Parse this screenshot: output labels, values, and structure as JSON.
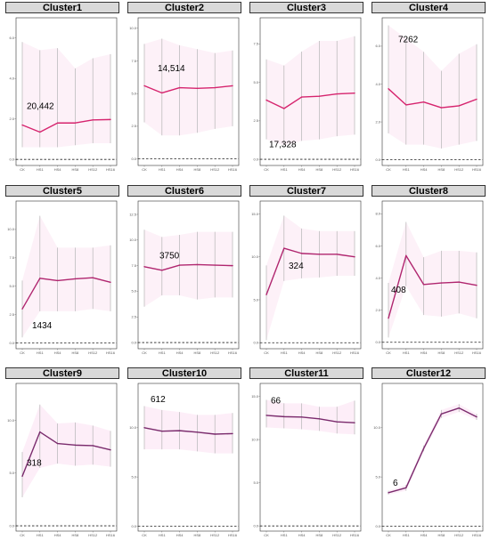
{
  "chart_data": [
    {
      "type": "line",
      "title": "Cluster1",
      "categories": [
        "CK",
        "HS1",
        "HS4",
        "HS8",
        "HS12",
        "HS16"
      ],
      "values": [
        1.7,
        1.35,
        1.8,
        1.8,
        1.95,
        1.97
      ],
      "error_low": [
        0.6,
        0.6,
        0.6,
        0.7,
        0.8,
        0.8
      ],
      "error_high": [
        5.8,
        5.4,
        5.5,
        4.5,
        5.0,
        5.2
      ],
      "count_label": "20,442",
      "count_value": 2.5,
      "yticks": [
        "0.0",
        "2.0",
        "4.0",
        "6.0"
      ],
      "ytick_values": [
        0,
        2,
        4,
        6
      ],
      "ylim": [
        -0.3,
        7
      ],
      "line_color": "#d6246e",
      "band_color": "#fce8f3"
    },
    {
      "type": "line",
      "title": "Cluster2",
      "categories": [
        "CK",
        "HS1",
        "HS4",
        "HS8",
        "HS12",
        "HS16"
      ],
      "values": [
        5.6,
        5.05,
        5.45,
        5.4,
        5.45,
        5.6
      ],
      "error_low": [
        2.8,
        1.8,
        1.8,
        2.0,
        2.3,
        2.5
      ],
      "error_high": [
        8.8,
        9.2,
        8.7,
        8.4,
        8.1,
        8.3
      ],
      "count_label": "14,514",
      "count_value": 6.7,
      "yticks": [
        "0.0",
        "2.5",
        "5.0",
        "7.5",
        "10.0"
      ],
      "ytick_values": [
        0,
        2.5,
        5,
        7.5,
        10
      ],
      "ylim": [
        -0.5,
        10.8
      ],
      "line_color": "#d6246e",
      "band_color": "#fce8f3"
    },
    {
      "type": "line",
      "title": "Cluster3",
      "categories": [
        "CK",
        "HS1",
        "HS4",
        "HS8",
        "HS12",
        "HS16"
      ],
      "values": [
        3.85,
        3.3,
        4.05,
        4.1,
        4.25,
        4.3
      ],
      "error_low": [
        1.3,
        0.9,
        1.2,
        1.3,
        1.5,
        1.6
      ],
      "error_high": [
        6.5,
        6.1,
        7.0,
        7.7,
        7.7,
        8.0
      ],
      "count_label": "17,328",
      "count_value": 0.8,
      "yticks": [
        "0.0",
        "2.5",
        "5.0",
        "7.5"
      ],
      "ytick_values": [
        0,
        2.5,
        5,
        7.5
      ],
      "ylim": [
        -0.4,
        9.2
      ],
      "line_color": "#d6246e",
      "band_color": "#fce8f3"
    },
    {
      "type": "line",
      "title": "Cluster4",
      "categories": [
        "CK",
        "HS1",
        "HS4",
        "HS8",
        "HS12",
        "HS16"
      ],
      "values": [
        3.75,
        2.9,
        3.05,
        2.75,
        2.85,
        3.2
      ],
      "error_low": [
        1.4,
        0.8,
        0.8,
        0.6,
        0.8,
        1.0
      ],
      "error_high": [
        7.1,
        6.4,
        5.7,
        4.7,
        5.6,
        6.1
      ],
      "count_label": "7262",
      "count_value": 6.2,
      "yticks": [
        "0.0",
        "2.0",
        "4.0",
        "6.0"
      ],
      "ytick_values": [
        0,
        2,
        4,
        6
      ],
      "ylim": [
        -0.3,
        7.5
      ],
      "line_color": "#d6246e",
      "band_color": "#fce8f3"
    },
    {
      "type": "line",
      "title": "Cluster5",
      "categories": [
        "CK",
        "HS1",
        "HS4",
        "HS8",
        "HS12",
        "HS16"
      ],
      "values": [
        3.0,
        5.7,
        5.5,
        5.65,
        5.75,
        5.35
      ],
      "error_low": [
        0.5,
        2.8,
        2.8,
        2.8,
        3.0,
        2.8
      ],
      "error_high": [
        5.5,
        11.2,
        8.4,
        8.4,
        8.4,
        8.6
      ],
      "count_label": "1434",
      "count_value": 1.3,
      "yticks": [
        "0.0",
        "2.5",
        "5.0",
        "7.5",
        "10.0"
      ],
      "ytick_values": [
        0,
        2.5,
        5,
        7.5,
        10
      ],
      "ylim": [
        -0.5,
        12.5
      ],
      "line_color": "#b0266f",
      "band_color": "#fce8f3"
    },
    {
      "type": "line",
      "title": "Cluster6",
      "categories": [
        "CK",
        "HS1",
        "HS4",
        "HS8",
        "HS12",
        "HS16"
      ],
      "values": [
        7.4,
        7.05,
        7.55,
        7.6,
        7.55,
        7.5
      ],
      "error_low": [
        3.5,
        4.6,
        4.6,
        4.2,
        4.4,
        4.4
      ],
      "error_high": [
        11.0,
        10.3,
        10.5,
        10.8,
        10.8,
        10.8
      ],
      "count_label": "3750",
      "count_value": 8.2,
      "yticks": [
        "0.0",
        "2.5",
        "5.0",
        "7.5",
        "10.0",
        "12.5"
      ],
      "ytick_values": [
        0,
        2.5,
        5,
        7.5,
        10,
        12.5
      ],
      "ylim": [
        -0.6,
        13.8
      ],
      "line_color": "#b0266f",
      "band_color": "#fce8f3"
    },
    {
      "type": "line",
      "title": "Cluster7",
      "categories": [
        "CK",
        "HS1",
        "HS4",
        "HS8",
        "HS12",
        "HS16"
      ],
      "values": [
        5.6,
        11.0,
        10.4,
        10.3,
        10.3,
        10.0
      ],
      "error_low": [
        0.3,
        7.2,
        7.5,
        7.6,
        7.8,
        7.8
      ],
      "error_high": [
        9.0,
        14.8,
        13.3,
        13.0,
        13.0,
        13.0
      ],
      "count_label": "324",
      "count_value": 8.6,
      "yticks": [
        "0.0",
        "5.0",
        "10.0",
        "15.0"
      ],
      "ytick_values": [
        0,
        5,
        10,
        15
      ],
      "ylim": [
        -0.7,
        16.5
      ],
      "line_color": "#b0266f",
      "band_color": "#fce8f3"
    },
    {
      "type": "line",
      "title": "Cluster8",
      "categories": [
        "CK",
        "HS1",
        "HS4",
        "HS8",
        "HS12",
        "HS16"
      ],
      "values": [
        1.5,
        5.4,
        3.6,
        3.7,
        3.75,
        3.55
      ],
      "error_low": [
        0.3,
        3.5,
        1.7,
        1.6,
        1.8,
        1.5
      ],
      "error_high": [
        3.7,
        7.5,
        5.3,
        5.7,
        5.7,
        5.6
      ],
      "count_label": "408",
      "count_value": 3.1,
      "yticks": [
        "0.0",
        "2.0",
        "4.0",
        "6.0",
        "8.0"
      ],
      "ytick_values": [
        0,
        2,
        4,
        6,
        8
      ],
      "ylim": [
        -0.4,
        8.8
      ],
      "line_color": "#b0266f",
      "band_color": "#fce8f3"
    },
    {
      "type": "line",
      "title": "Cluster9",
      "categories": [
        "CK",
        "HS1",
        "HS4",
        "HS8",
        "HS12",
        "HS16"
      ],
      "values": [
        4.7,
        8.9,
        7.8,
        7.65,
        7.6,
        7.2
      ],
      "error_low": [
        2.7,
        5.5,
        5.9,
        5.7,
        5.8,
        5.6
      ],
      "error_high": [
        7.0,
        11.5,
        9.7,
        9.8,
        9.5,
        9.0
      ],
      "count_label": "318",
      "count_value": 5.7,
      "yticks": [
        "0.0",
        "5.0",
        "10.0"
      ],
      "ytick_values": [
        0,
        5,
        10
      ],
      "ylim": [
        -0.5,
        13.5
      ],
      "line_color": "#7a2b6d",
      "band_color": "#fbe3f3"
    },
    {
      "type": "line",
      "title": "Cluster10",
      "categories": [
        "CK",
        "HS1",
        "HS4",
        "HS8",
        "HS12",
        "HS16"
      ],
      "values": [
        10.0,
        9.65,
        9.7,
        9.55,
        9.35,
        9.4
      ],
      "error_low": [
        7.8,
        7.8,
        7.8,
        7.6,
        7.4,
        7.4
      ],
      "error_high": [
        12.2,
        11.8,
        11.6,
        11.3,
        11.3,
        11.5
      ],
      "count_label": "612",
      "count_value": 12.6,
      "yticks": [
        "0.0",
        "5.0",
        "10.0"
      ],
      "ytick_values": [
        0,
        5,
        10
      ],
      "ylim": [
        -0.5,
        14.5
      ],
      "line_color": "#7a2b6d",
      "band_color": "#fbe3f3"
    },
    {
      "type": "line",
      "title": "Cluster11",
      "categories": [
        "CK",
        "HS1",
        "HS4",
        "HS8",
        "HS12",
        "HS16"
      ],
      "values": [
        12.8,
        12.65,
        12.6,
        12.4,
        12.05,
        11.95
      ],
      "error_low": [
        11.4,
        11.3,
        11.2,
        11.0,
        10.7,
        10.6
      ],
      "error_high": [
        14.6,
        14.2,
        14.2,
        13.8,
        13.8,
        14.5
      ],
      "count_label": "66",
      "count_value": 14.2,
      "yticks": [
        "0.0",
        "5.0",
        "10.0",
        "15.0"
      ],
      "ytick_values": [
        0,
        5,
        10,
        15
      ],
      "ylim": [
        -0.6,
        16.5
      ],
      "line_color": "#7a2b6d",
      "band_color": "#fbe3f3"
    },
    {
      "type": "line",
      "title": "Cluster12",
      "categories": [
        "CK",
        "HS1",
        "HS4",
        "HS8",
        "HS12",
        "HS16"
      ],
      "values": [
        3.4,
        3.9,
        7.9,
        11.4,
        12.0,
        11.1
      ],
      "error_low": [
        3.2,
        3.6,
        7.6,
        11.0,
        11.6,
        10.8
      ],
      "error_high": [
        3.6,
        4.2,
        8.2,
        11.8,
        12.4,
        11.4
      ],
      "count_label": "6",
      "count_value": 4.1,
      "yticks": [
        "0.0",
        "5.0",
        "10.0"
      ],
      "ytick_values": [
        0,
        5,
        10
      ],
      "ylim": [
        -0.5,
        14.5
      ],
      "line_color": "#7a2b6d",
      "band_color": "#fbe3f3"
    }
  ]
}
